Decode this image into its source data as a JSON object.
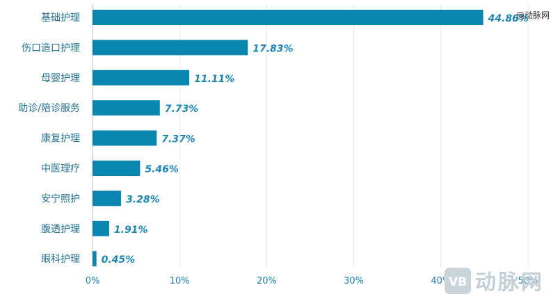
{
  "chart_data": {
    "type": "bar",
    "orientation": "horizontal",
    "categories": [
      "基础护理",
      "伤口造口护理",
      "母婴护理",
      "助诊/陪诊服务",
      "康复护理",
      "中医理疗",
      "安宁照护",
      "腹透护理",
      "眼科护理"
    ],
    "values": [
      44.86,
      17.83,
      11.11,
      7.73,
      7.37,
      5.46,
      3.28,
      1.91,
      0.45
    ],
    "data_labels": [
      "44.86%",
      "17.83%",
      "11.11%",
      "7.73%",
      "7.37%",
      "5.46%",
      "3.28%",
      "1.91%",
      "0.45%"
    ],
    "x_ticks": [
      "0%",
      "10%",
      "20%",
      "30%",
      "40%",
      "50%"
    ],
    "xlim": [
      0,
      50
    ],
    "grid": true,
    "title": "",
    "xlabel": "",
    "ylabel": "",
    "bar_color": "#0a86b0"
  },
  "watermark": {
    "corner_text": "@动脉网",
    "brand_text": "动脉网",
    "badge_text": "VB"
  }
}
